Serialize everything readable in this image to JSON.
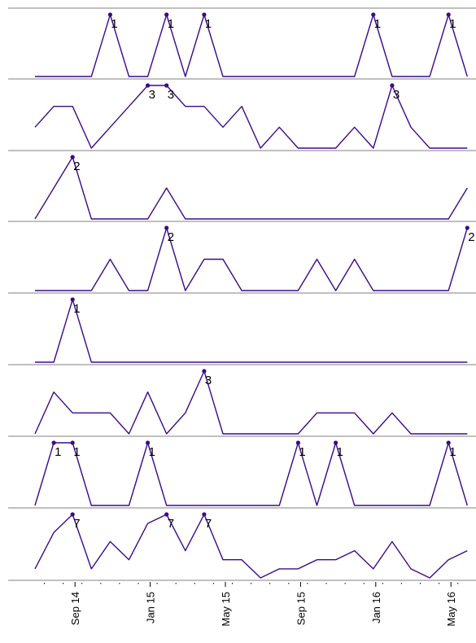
{
  "chart_data": {
    "type": "line",
    "layout": "small multiples, one panel per series, shared date x-axis",
    "x": [
      "2014-07",
      "2014-08",
      "2014-09",
      "2014-10",
      "2014-11",
      "2014-12",
      "2015-01",
      "2015-02",
      "2015-03",
      "2015-04",
      "2015-05",
      "2015-06",
      "2015-07",
      "2015-08",
      "2015-09",
      "2015-10",
      "2015-11",
      "2015-12",
      "2016-01",
      "2016-02",
      "2016-03",
      "2016-04",
      "2016-05",
      "2016-06"
    ],
    "x_tick_labels": [
      "Sep 14",
      "Jan 15",
      "May 15",
      "Sep 15",
      "Jan 16",
      "May 16"
    ],
    "x_tick_months": [
      "2014-09",
      "2015-01",
      "2015-05",
      "2015-09",
      "2016-01",
      "2016-05"
    ],
    "grid": false,
    "panels": [
      {
        "values": [
          0,
          0,
          0,
          0,
          1,
          0,
          0,
          1,
          0,
          1,
          0,
          0,
          0,
          0,
          0,
          0,
          0,
          0,
          1,
          0,
          0,
          0,
          1,
          0
        ],
        "ylim": [
          0,
          1
        ],
        "peak_labels": [
          {
            "x": "2014-11",
            "text": "1"
          },
          {
            "x": "2015-02",
            "text": "1"
          },
          {
            "x": "2015-04",
            "text": "1"
          },
          {
            "x": "2016-01",
            "text": "1"
          },
          {
            "x": "2016-05",
            "text": "1"
          }
        ]
      },
      {
        "values": [
          1,
          2,
          2,
          0,
          1,
          2,
          3,
          3,
          2,
          2,
          1,
          2,
          0,
          1,
          0,
          0,
          0,
          1,
          0,
          3,
          1,
          0,
          0,
          0
        ],
        "ylim": [
          0,
          3
        ],
        "peak_labels": [
          {
            "x": "2015-01",
            "text": "3"
          },
          {
            "x": "2015-02",
            "text": "3"
          },
          {
            "x": "2016-02",
            "text": "3"
          }
        ]
      },
      {
        "values": [
          0,
          1,
          2,
          0,
          0,
          0,
          0,
          1,
          0,
          0,
          0,
          0,
          0,
          0,
          0,
          0,
          0,
          0,
          0,
          0,
          0,
          0,
          0,
          1
        ],
        "ylim": [
          0,
          2
        ],
        "peak_labels": [
          {
            "x": "2014-09",
            "text": "2"
          }
        ]
      },
      {
        "values": [
          0,
          0,
          0,
          0,
          1,
          0,
          0,
          2,
          0,
          1,
          1,
          0,
          0,
          0,
          0,
          1,
          0,
          1,
          0,
          0,
          0,
          0,
          0,
          2
        ],
        "ylim": [
          0,
          2
        ],
        "peak_labels": [
          {
            "x": "2015-02",
            "text": "2"
          },
          {
            "x": "2016-06",
            "text": "2"
          }
        ]
      },
      {
        "values": [
          0,
          0,
          1,
          0,
          0,
          0,
          0,
          0,
          0,
          0,
          0,
          0,
          0,
          0,
          0,
          0,
          0,
          0,
          0,
          0,
          0,
          0,
          0,
          0
        ],
        "ylim": [
          0,
          1
        ],
        "peak_labels": [
          {
            "x": "2014-09",
            "text": "1"
          }
        ]
      },
      {
        "values": [
          0,
          2,
          1,
          1,
          1,
          0,
          2,
          0,
          1,
          3,
          0,
          0,
          0,
          0,
          0,
          1,
          1,
          1,
          0,
          1,
          0,
          0,
          0,
          0
        ],
        "ylim": [
          0,
          3
        ],
        "peak_labels": [
          {
            "x": "2015-04",
            "text": "3"
          }
        ]
      },
      {
        "values": [
          0,
          1,
          1,
          0,
          0,
          0,
          1,
          0,
          0,
          0,
          0,
          0,
          0,
          0,
          1,
          0,
          1,
          0,
          0,
          0,
          0,
          0,
          1,
          0
        ],
        "ylim": [
          0,
          1
        ],
        "peak_labels": [
          {
            "x": "2014-08",
            "text": "1"
          },
          {
            "x": "2014-09",
            "text": "1"
          },
          {
            "x": "2015-01",
            "text": "1"
          },
          {
            "x": "2015-09",
            "text": "1"
          },
          {
            "x": "2015-11",
            "text": "1"
          },
          {
            "x": "2016-05",
            "text": "1"
          }
        ]
      },
      {
        "values": [
          1,
          5,
          7,
          1,
          4,
          2,
          6,
          7,
          3,
          7,
          2,
          2,
          0,
          1,
          1,
          2,
          2,
          3,
          1,
          4,
          1,
          0,
          2,
          3
        ],
        "ylim": [
          0,
          7
        ],
        "peak_labels": [
          {
            "x": "2014-09",
            "text": "7"
          },
          {
            "x": "2015-02",
            "text": "7"
          },
          {
            "x": "2015-04",
            "text": "7"
          }
        ]
      }
    ]
  }
}
